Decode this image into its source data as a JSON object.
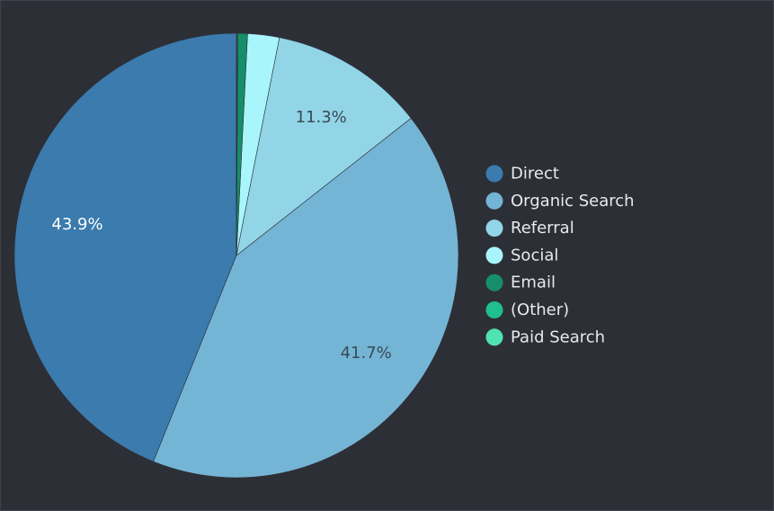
{
  "chart_data": {
    "type": "pie",
    "title": "",
    "legend_position": "right",
    "slices": [
      {
        "label": "Direct",
        "value": 43.9,
        "color": "#3b7bad",
        "value_label": "43.9%",
        "label_color": "#ffffff"
      },
      {
        "label": "Organic Search",
        "value": 41.7,
        "color": "#74b5d5",
        "value_label": "41.7%",
        "label_color": "#3a4a55"
      },
      {
        "label": "Referral",
        "value": 11.3,
        "color": "#91d5e7",
        "value_label": "11.3%",
        "label_color": "#3a4a55"
      },
      {
        "label": "Social",
        "value": 2.3,
        "color": "#a9f5fc",
        "value_label": "",
        "label_color": "#3a4a55"
      },
      {
        "label": "Email",
        "value": 0.7,
        "color": "#178e6a",
        "value_label": "",
        "label_color": "#ffffff"
      },
      {
        "label": "(Other)",
        "value": 0.05,
        "color": "#1fbf90",
        "value_label": "",
        "label_color": "#ffffff"
      },
      {
        "label": "Paid Search",
        "value": 0.05,
        "color": "#4fe3b2",
        "value_label": "",
        "label_color": "#ffffff"
      }
    ]
  }
}
